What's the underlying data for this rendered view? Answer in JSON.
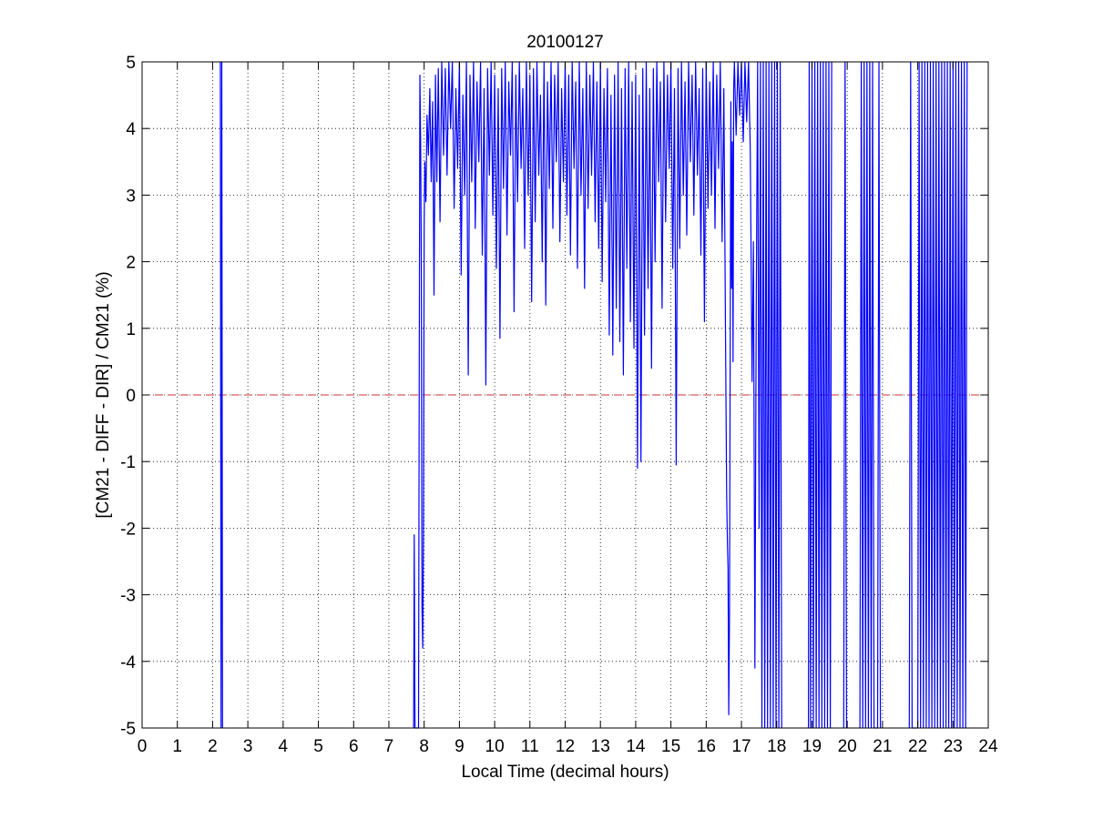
{
  "figure": {
    "background": "#ffffff",
    "axes_background": "#ffffff"
  },
  "chart_data": {
    "type": "line",
    "title": "20100127",
    "xlabel": "Local Time (decimal hours)",
    "ylabel": "[CM21 - DIFF - DIR] / CM21 (%)",
    "xlim": [
      0,
      24
    ],
    "ylim": [
      -5,
      5
    ],
    "xticks": [
      0,
      1,
      2,
      3,
      4,
      5,
      6,
      7,
      8,
      9,
      10,
      11,
      12,
      13,
      14,
      15,
      16,
      17,
      18,
      19,
      20,
      21,
      22,
      23,
      24
    ],
    "yticks": [
      5,
      4,
      3,
      2,
      1,
      0,
      -1,
      -2,
      -3,
      -4,
      -5
    ],
    "grid": true,
    "grid_style": "dotted",
    "legend": "none",
    "series": [
      {
        "color": "#0000ff",
        "note_values_clipped_to_ylim": true,
        "points": [
          [
            2.22,
            5
          ],
          [
            2.24,
            -5
          ],
          [
            2.26,
            5
          ],
          [
            2.28,
            -5
          ],
          [
            7.7,
            -5
          ],
          [
            7.72,
            -2.1
          ],
          [
            7.74,
            -5
          ],
          [
            7.84,
            -5
          ],
          [
            7.86,
            -0.2
          ],
          [
            7.88,
            4.8
          ],
          [
            7.9,
            3.8
          ],
          [
            7.92,
            1.8
          ],
          [
            7.94,
            -3.2
          ],
          [
            7.96,
            -3.8
          ],
          [
            7.98,
            -2.2
          ],
          [
            8.0,
            2.5
          ],
          [
            8.02,
            3.5
          ],
          [
            8.05,
            2.9
          ],
          [
            8.08,
            4.2
          ],
          [
            8.12,
            3.6
          ],
          [
            8.16,
            4.6
          ],
          [
            8.2,
            3.2
          ],
          [
            8.24,
            4.4
          ],
          [
            8.28,
            1.5
          ],
          [
            8.32,
            4.8
          ],
          [
            8.36,
            3.2
          ],
          [
            8.4,
            4.9
          ],
          [
            8.45,
            2.6
          ],
          [
            8.5,
            5
          ],
          [
            8.55,
            3.6
          ],
          [
            8.6,
            4.9
          ],
          [
            8.65,
            3.3
          ],
          [
            8.7,
            5
          ],
          [
            8.75,
            4.0
          ],
          [
            8.8,
            5
          ],
          [
            8.85,
            2.8
          ],
          [
            8.9,
            4.6
          ],
          [
            8.95,
            3.4
          ],
          [
            9.0,
            5
          ],
          [
            9.05,
            1.8
          ],
          [
            9.1,
            4.5
          ],
          [
            9.15,
            3.0
          ],
          [
            9.2,
            5
          ],
          [
            9.25,
            0.3
          ],
          [
            9.3,
            4.8
          ],
          [
            9.35,
            3.2
          ],
          [
            9.4,
            5
          ],
          [
            9.45,
            2.5
          ],
          [
            9.5,
            4.7
          ],
          [
            9.55,
            3.5
          ],
          [
            9.6,
            5
          ],
          [
            9.65,
            2.1
          ],
          [
            9.7,
            4.6
          ],
          [
            9.75,
            0.15
          ],
          [
            9.8,
            4.9
          ],
          [
            9.85,
            3.3
          ],
          [
            9.9,
            5
          ],
          [
            9.95,
            2.7
          ],
          [
            10.0,
            4.8
          ],
          [
            10.05,
            1.9
          ],
          [
            10.1,
            4.6
          ],
          [
            10.15,
            0.85
          ],
          [
            10.2,
            4.9
          ],
          [
            10.25,
            3.1
          ],
          [
            10.3,
            5
          ],
          [
            10.35,
            2.4
          ],
          [
            10.4,
            4.7
          ],
          [
            10.45,
            3.6
          ],
          [
            10.5,
            5
          ],
          [
            10.55,
            1.25
          ],
          [
            10.6,
            4.8
          ],
          [
            10.65,
            2.9
          ],
          [
            10.7,
            5
          ],
          [
            10.75,
            3.4
          ],
          [
            10.8,
            4.6
          ],
          [
            10.85,
            2.2
          ],
          [
            10.9,
            5
          ],
          [
            10.95,
            3.0
          ],
          [
            11.0,
            4.8
          ],
          [
            11.05,
            1.4
          ],
          [
            11.1,
            4.9
          ],
          [
            11.15,
            2.6
          ],
          [
            11.2,
            5
          ],
          [
            11.25,
            3.3
          ],
          [
            11.3,
            4.5
          ],
          [
            11.35,
            2.0
          ],
          [
            11.4,
            5
          ],
          [
            11.45,
            1.35
          ],
          [
            11.5,
            4.7
          ],
          [
            11.55,
            3.1
          ],
          [
            11.6,
            5
          ],
          [
            11.65,
            2.5
          ],
          [
            11.7,
            4.8
          ],
          [
            11.75,
            3.5
          ],
          [
            11.8,
            5
          ],
          [
            11.85,
            2.3
          ],
          [
            11.9,
            4.6
          ],
          [
            11.95,
            3.2
          ],
          [
            12.0,
            5
          ],
          [
            12.05,
            2.7
          ],
          [
            12.1,
            4.8
          ],
          [
            12.15,
            2.1
          ],
          [
            12.2,
            5
          ],
          [
            12.25,
            3.4
          ],
          [
            12.3,
            4.7
          ],
          [
            12.35,
            1.9
          ],
          [
            12.4,
            5
          ],
          [
            12.45,
            3.0
          ],
          [
            12.5,
            4.6
          ],
          [
            12.55,
            1.6
          ],
          [
            12.6,
            5
          ],
          [
            12.65,
            2.8
          ],
          [
            12.7,
            4.8
          ],
          [
            12.75,
            3.3
          ],
          [
            12.8,
            5
          ],
          [
            12.85,
            2.6
          ],
          [
            12.9,
            4.7
          ],
          [
            12.95,
            2.2
          ],
          [
            13.0,
            5
          ],
          [
            13.05,
            1.7
          ],
          [
            13.1,
            4.6
          ],
          [
            13.15,
            2.9
          ],
          [
            13.2,
            4.9
          ],
          [
            13.25,
            0.9
          ],
          [
            13.3,
            4.5
          ],
          [
            13.35,
            0.6
          ],
          [
            13.4,
            4.8
          ],
          [
            13.45,
            1.3
          ],
          [
            13.5,
            5
          ],
          [
            13.55,
            0.8
          ],
          [
            13.6,
            4.6
          ],
          [
            13.65,
            0.3
          ],
          [
            13.7,
            4.9
          ],
          [
            13.75,
            1.9
          ],
          [
            13.8,
            5
          ],
          [
            13.85,
            1.1
          ],
          [
            13.9,
            4.7
          ],
          [
            13.95,
            0.7
          ],
          [
            14.0,
            4.8
          ],
          [
            14.05,
            -1.1
          ],
          [
            14.1,
            4.5
          ],
          [
            14.15,
            -1.0
          ],
          [
            14.2,
            4.9
          ],
          [
            14.25,
            0.9
          ],
          [
            14.3,
            5
          ],
          [
            14.35,
            1.6
          ],
          [
            14.4,
            4.6
          ],
          [
            14.45,
            0.4
          ],
          [
            14.5,
            4.9
          ],
          [
            14.55,
            2.0
          ],
          [
            14.6,
            5
          ],
          [
            14.65,
            3.2
          ],
          [
            14.7,
            4.7
          ],
          [
            14.75,
            1.3
          ],
          [
            14.8,
            5
          ],
          [
            14.85,
            2.6
          ],
          [
            14.9,
            4.8
          ],
          [
            14.95,
            3.4
          ],
          [
            15.0,
            5
          ],
          [
            15.05,
            1.9
          ],
          [
            15.1,
            4.6
          ],
          [
            15.15,
            -1.05
          ],
          [
            15.2,
            4.9
          ],
          [
            15.25,
            2.2
          ],
          [
            15.3,
            5
          ],
          [
            15.35,
            3.0
          ],
          [
            15.4,
            4.7
          ],
          [
            15.45,
            2.4
          ],
          [
            15.5,
            5
          ],
          [
            15.55,
            3.5
          ],
          [
            15.6,
            4.8
          ],
          [
            15.65,
            2.7
          ],
          [
            15.7,
            5
          ],
          [
            15.75,
            3.3
          ],
          [
            15.8,
            4.6
          ],
          [
            15.85,
            2.1
          ],
          [
            15.9,
            4.9
          ],
          [
            15.95,
            1.1
          ],
          [
            16.0,
            5
          ],
          [
            16.05,
            2.8
          ],
          [
            16.1,
            4.7
          ],
          [
            16.15,
            3.0
          ],
          [
            16.2,
            5
          ],
          [
            16.25,
            2.5
          ],
          [
            16.3,
            4.8
          ],
          [
            16.35,
            3.4
          ],
          [
            16.4,
            5
          ],
          [
            16.45,
            2.3
          ],
          [
            16.5,
            4.6
          ],
          [
            16.55,
            0.8
          ],
          [
            16.58,
            -1.5
          ],
          [
            16.6,
            -2.2
          ],
          [
            16.62,
            -2.6
          ],
          [
            16.64,
            -4.8
          ],
          [
            16.66,
            -3.3
          ],
          [
            16.68,
            0.8
          ],
          [
            16.7,
            4.4
          ],
          [
            16.72,
            1.6
          ],
          [
            16.74,
            3.8
          ],
          [
            16.76,
            0.5
          ],
          [
            16.78,
            4.6
          ],
          [
            16.8,
            5
          ],
          [
            16.85,
            3.9
          ],
          [
            16.9,
            5
          ],
          [
            16.95,
            4.2
          ],
          [
            17.0,
            5
          ],
          [
            17.05,
            3.8
          ],
          [
            17.1,
            5
          ],
          [
            17.15,
            4.1
          ],
          [
            17.2,
            5
          ],
          [
            17.25,
            3.7
          ],
          [
            17.3,
            0.2
          ],
          [
            17.34,
            2.3
          ],
          [
            17.38,
            -4.1
          ],
          [
            17.42,
            1.4
          ],
          [
            17.46,
            5
          ],
          [
            17.5,
            -2.0
          ],
          [
            17.54,
            5
          ],
          [
            17.58,
            -5
          ],
          [
            17.62,
            5
          ],
          [
            17.66,
            -5
          ],
          [
            17.7,
            5
          ],
          [
            17.74,
            -5
          ],
          [
            17.78,
            5
          ],
          [
            17.82,
            -5
          ],
          [
            17.86,
            5
          ],
          [
            17.9,
            -5
          ],
          [
            17.94,
            5
          ],
          [
            17.98,
            -5
          ],
          [
            18.02,
            5
          ],
          [
            18.06,
            -5
          ],
          [
            18.1,
            5
          ],
          [
            18.14,
            -5
          ],
          [
            18.9,
            -5
          ],
          [
            18.92,
            5
          ],
          [
            18.96,
            -5
          ],
          [
            19.0,
            5
          ],
          [
            19.04,
            -5
          ],
          [
            19.08,
            5
          ],
          [
            19.12,
            -5
          ],
          [
            19.16,
            5
          ],
          [
            19.2,
            -5
          ],
          [
            19.24,
            5
          ],
          [
            19.28,
            -5
          ],
          [
            19.32,
            5
          ],
          [
            19.36,
            -5
          ],
          [
            19.4,
            5
          ],
          [
            19.44,
            -5
          ],
          [
            19.48,
            5
          ],
          [
            19.52,
            -5
          ],
          [
            19.56,
            5
          ],
          [
            19.9,
            -5
          ],
          [
            19.94,
            5
          ],
          [
            19.98,
            -5
          ],
          [
            20.36,
            -5
          ],
          [
            20.4,
            5
          ],
          [
            20.44,
            -5
          ],
          [
            20.48,
            5
          ],
          [
            20.52,
            -5
          ],
          [
            20.56,
            5
          ],
          [
            20.6,
            -5
          ],
          [
            20.64,
            5
          ],
          [
            20.68,
            -5
          ],
          [
            20.72,
            5
          ],
          [
            20.76,
            -5
          ],
          [
            20.86,
            -5
          ],
          [
            20.9,
            5
          ],
          [
            20.94,
            -5
          ],
          [
            21.76,
            -5
          ],
          [
            21.8,
            5
          ],
          [
            21.84,
            -5
          ],
          [
            22.0,
            -5
          ],
          [
            22.04,
            5
          ],
          [
            22.08,
            -5
          ],
          [
            22.12,
            5
          ],
          [
            22.16,
            -5
          ],
          [
            22.2,
            5
          ],
          [
            22.24,
            -5
          ],
          [
            22.28,
            5
          ],
          [
            22.32,
            -5
          ],
          [
            22.36,
            5
          ],
          [
            22.4,
            -5
          ],
          [
            22.44,
            5
          ],
          [
            22.48,
            -5
          ],
          [
            22.52,
            5
          ],
          [
            22.56,
            -5
          ],
          [
            22.6,
            5
          ],
          [
            22.64,
            -5
          ],
          [
            22.68,
            5
          ],
          [
            22.72,
            -5
          ],
          [
            22.76,
            5
          ],
          [
            22.8,
            -5
          ],
          [
            22.84,
            5
          ],
          [
            22.88,
            -5
          ],
          [
            22.92,
            5
          ],
          [
            22.96,
            -5
          ],
          [
            23.0,
            5
          ],
          [
            23.04,
            -5
          ],
          [
            23.08,
            5
          ],
          [
            23.12,
            -5
          ],
          [
            23.16,
            5
          ],
          [
            23.2,
            -5
          ],
          [
            23.24,
            5
          ],
          [
            23.28,
            -5
          ],
          [
            23.32,
            5
          ],
          [
            23.36,
            -5
          ],
          [
            23.4,
            5
          ]
        ]
      }
    ],
    "reference_lines": [
      {
        "y": 0,
        "color": "#cc3333",
        "style": "dashed"
      }
    ]
  }
}
